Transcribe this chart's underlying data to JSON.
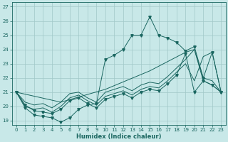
{
  "title": "",
  "xlabel": "Humidex (Indice chaleur)",
  "bg_color": "#c8e8e8",
  "grid_color": "#a0c8c8",
  "line_color": "#1a6660",
  "xlim": [
    -0.5,
    23.5
  ],
  "ylim": [
    18.7,
    27.3
  ],
  "xticks": [
    0,
    1,
    2,
    3,
    4,
    5,
    6,
    7,
    8,
    9,
    10,
    11,
    12,
    13,
    14,
    15,
    16,
    17,
    18,
    19,
    20,
    21,
    22,
    23
  ],
  "yticks": [
    19,
    20,
    21,
    22,
    23,
    24,
    25,
    26,
    27
  ],
  "lines": [
    {
      "x": [
        0,
        1,
        2,
        3,
        4,
        5,
        6,
        7,
        8,
        9,
        10,
        11,
        12,
        13,
        14,
        15,
        16,
        17,
        18,
        19,
        20,
        21,
        22,
        23
      ],
      "y": [
        21.0,
        19.9,
        19.4,
        19.3,
        19.2,
        18.9,
        19.2,
        19.8,
        20.1,
        20.2,
        23.3,
        23.6,
        24.0,
        25.0,
        25.0,
        26.3,
        25.0,
        24.8,
        24.5,
        23.9,
        24.2,
        22.0,
        23.8,
        21.0
      ],
      "markers": true
    },
    {
      "x": [
        0,
        1,
        2,
        3,
        4,
        5,
        6,
        7,
        8,
        9,
        10,
        11,
        12,
        13,
        14,
        15,
        16,
        17,
        18,
        19,
        20,
        21,
        22,
        23
      ],
      "y": [
        21.0,
        20.1,
        19.7,
        19.6,
        19.5,
        19.8,
        20.4,
        20.6,
        20.2,
        19.9,
        20.5,
        20.7,
        20.9,
        20.6,
        21.0,
        21.2,
        21.1,
        21.6,
        22.2,
        23.7,
        21.0,
        21.8,
        21.5,
        21.0
      ],
      "markers": true
    },
    {
      "x": [
        0,
        1,
        2,
        3,
        4,
        5,
        6,
        7,
        8,
        9,
        10,
        11,
        12,
        13,
        14,
        15,
        16,
        17,
        18,
        19,
        20,
        21,
        22,
        23
      ],
      "y": [
        21.0,
        20.0,
        19.8,
        19.9,
        19.6,
        20.0,
        20.6,
        20.8,
        20.4,
        20.1,
        20.7,
        20.9,
        21.1,
        20.8,
        21.2,
        21.4,
        21.3,
        21.8,
        22.4,
        23.0,
        21.8,
        23.5,
        23.8,
        21.0
      ],
      "markers": false
    },
    {
      "x": [
        0,
        1,
        2,
        3,
        4,
        5,
        6,
        7,
        8,
        9,
        10,
        11,
        12,
        13,
        14,
        15,
        16,
        17,
        18,
        19,
        20,
        21,
        22,
        23
      ],
      "y": [
        21.0,
        20.3,
        20.1,
        20.2,
        19.9,
        20.3,
        20.9,
        21.0,
        20.6,
        20.3,
        21.0,
        21.2,
        21.4,
        21.1,
        21.5,
        21.7,
        21.6,
        22.1,
        22.7,
        23.3,
        24.0,
        22.0,
        21.8,
        21.0
      ],
      "markers": false
    },
    {
      "x": [
        0,
        5,
        10,
        15,
        19,
        20,
        21,
        22,
        23
      ],
      "y": [
        21.0,
        20.3,
        21.2,
        22.5,
        23.8,
        24.0,
        21.8,
        21.5,
        21.0
      ],
      "markers": false
    }
  ]
}
